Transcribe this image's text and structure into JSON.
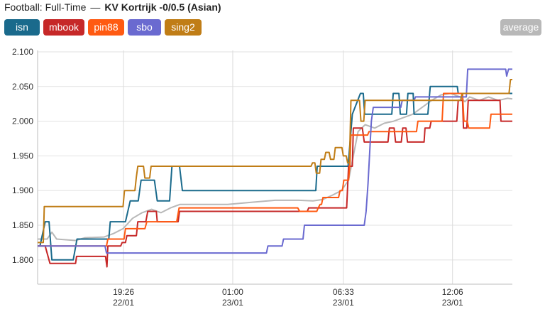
{
  "header": {
    "prefix": "Football: Full-Time",
    "separator": "—",
    "match": "KV Kortrijk -0/0.5 (Asian)"
  },
  "legend": {
    "buttons": [
      {
        "label": "isn",
        "color": "#1a6a8c"
      },
      {
        "label": "mbook",
        "color": "#c62828"
      },
      {
        "label": "pin88",
        "color": "#ff5a12"
      },
      {
        "label": "sbo",
        "color": "#6a6ad0"
      },
      {
        "label": "sing2",
        "color": "#c07d16"
      }
    ],
    "average": {
      "label": "average",
      "color": "#b8b8b8"
    }
  },
  "chart_data": {
    "type": "line",
    "title": "",
    "xlabel": "",
    "ylabel": "",
    "ylim": [
      1.765,
      2.102
    ],
    "xlim": [
      0,
      100
    ],
    "grid": true,
    "y_ticks": [
      "1.800",
      "1.850",
      "1.900",
      "1.950",
      "2.000",
      "2.050",
      "2.100"
    ],
    "y_tick_values": [
      1.8,
      1.85,
      1.9,
      1.95,
      2.0,
      2.05,
      2.1
    ],
    "x_ticks": [
      {
        "x": 18.1,
        "time": "19:26",
        "date": "22/01"
      },
      {
        "x": 41.1,
        "time": "01:00",
        "date": "23/01"
      },
      {
        "x": 64.4,
        "time": "06:33",
        "date": "23/01"
      },
      {
        "x": 87.4,
        "time": "12:06",
        "date": "23/01"
      }
    ],
    "series": [
      {
        "name": "isn",
        "color": "#1a6a8c",
        "points": [
          [
            0,
            1.82
          ],
          [
            0.5,
            1.82
          ],
          [
            0.8,
            1.83
          ],
          [
            1.6,
            1.855
          ],
          [
            2.4,
            1.855
          ],
          [
            3.0,
            1.8
          ],
          [
            7.5,
            1.8
          ],
          [
            8.3,
            1.83
          ],
          [
            15,
            1.83
          ],
          [
            15.3,
            1.855
          ],
          [
            18.5,
            1.855
          ],
          [
            19.5,
            1.885
          ],
          [
            21.2,
            1.885
          ],
          [
            21.8,
            1.915
          ],
          [
            24.6,
            1.915
          ],
          [
            25.2,
            1.885
          ],
          [
            27.8,
            1.885
          ],
          [
            28.3,
            1.935
          ],
          [
            29.9,
            1.935
          ],
          [
            30.5,
            1.9
          ],
          [
            58.6,
            1.9
          ],
          [
            58.9,
            1.935
          ],
          [
            65.4,
            1.935
          ],
          [
            66.3,
            2.01
          ],
          [
            68.0,
            2.04
          ],
          [
            68.6,
            2.04
          ],
          [
            68.9,
            2.01
          ],
          [
            74.6,
            2.01
          ],
          [
            74.9,
            2.04
          ],
          [
            76.1,
            2.04
          ],
          [
            76.4,
            2.01
          ],
          [
            77.7,
            2.01
          ],
          [
            78.0,
            2.04
          ],
          [
            79.1,
            2.04
          ],
          [
            79.3,
            2.01
          ],
          [
            82.2,
            2.01
          ],
          [
            82.7,
            2.05
          ],
          [
            88.4,
            2.05
          ],
          [
            88.6,
            2.04
          ],
          [
            100,
            2.04
          ]
        ]
      },
      {
        "name": "mbook",
        "color": "#c62828",
        "points": [
          [
            0,
            1.82
          ],
          [
            1.6,
            1.82
          ],
          [
            2.6,
            1.795
          ],
          [
            8,
            1.795
          ],
          [
            8.2,
            1.805
          ],
          [
            14.3,
            1.805
          ],
          [
            14.6,
            1.79
          ],
          [
            14.8,
            1.82
          ],
          [
            17.5,
            1.82
          ],
          [
            17.8,
            1.825
          ],
          [
            18.5,
            1.825
          ],
          [
            18.8,
            1.835
          ],
          [
            20.8,
            1.835
          ],
          [
            21.1,
            1.855
          ],
          [
            22.8,
            1.855
          ],
          [
            23.2,
            1.87
          ],
          [
            25,
            1.87
          ],
          [
            25.2,
            1.855
          ],
          [
            29.6,
            1.855
          ],
          [
            29.9,
            1.87
          ],
          [
            56.8,
            1.87
          ],
          [
            57.1,
            1.875
          ],
          [
            65.1,
            1.875
          ],
          [
            65.5,
            1.935
          ],
          [
            66.3,
            1.935
          ],
          [
            66.5,
            1.99
          ],
          [
            68.4,
            1.99
          ],
          [
            68.8,
            1.97
          ],
          [
            73.8,
            1.97
          ],
          [
            74.1,
            1.99
          ],
          [
            75.1,
            1.99
          ],
          [
            75.4,
            1.97
          ],
          [
            76.6,
            1.97
          ],
          [
            76.9,
            1.99
          ],
          [
            77.6,
            1.99
          ],
          [
            77.9,
            1.97
          ],
          [
            81.4,
            1.97
          ],
          [
            81.6,
            1.99
          ],
          [
            82.6,
            1.99
          ],
          [
            82.9,
            2.0
          ],
          [
            88.3,
            2.0
          ],
          [
            88.6,
            2.03
          ],
          [
            89.5,
            2.03
          ],
          [
            89.7,
            1.99
          ],
          [
            90.4,
            1.99
          ],
          [
            90.7,
            2.03
          ],
          [
            97.4,
            2.03
          ],
          [
            97.6,
            2.0
          ],
          [
            100,
            2.0
          ]
        ]
      },
      {
        "name": "pin88",
        "color": "#ff5a12",
        "points": [
          [
            0,
            1.82
          ],
          [
            14.5,
            1.82
          ],
          [
            14.8,
            1.83
          ],
          [
            18.2,
            1.83
          ],
          [
            18.5,
            1.845
          ],
          [
            22.6,
            1.845
          ],
          [
            23,
            1.855
          ],
          [
            29.3,
            1.855
          ],
          [
            29.8,
            1.875
          ],
          [
            54.8,
            1.875
          ],
          [
            55.2,
            1.87
          ],
          [
            58.8,
            1.87
          ],
          [
            59.1,
            1.875
          ],
          [
            59.5,
            1.88
          ],
          [
            59.8,
            1.88
          ],
          [
            60.1,
            1.89
          ],
          [
            63.4,
            1.89
          ],
          [
            63.7,
            1.9
          ],
          [
            64.2,
            1.9
          ],
          [
            64.5,
            1.915
          ],
          [
            65.5,
            1.915
          ],
          [
            65.8,
            1.94
          ],
          [
            66,
            1.98
          ],
          [
            69.5,
            1.98
          ],
          [
            69.8,
            1.985
          ],
          [
            79.8,
            1.985
          ],
          [
            80.1,
            2.0
          ],
          [
            85.2,
            2.0
          ],
          [
            85.5,
            2.04
          ],
          [
            89.5,
            2.04
          ],
          [
            89.8,
            2.0
          ],
          [
            90.5,
            2.0
          ],
          [
            90.8,
            1.99
          ],
          [
            95.2,
            1.99
          ],
          [
            95.5,
            2.01
          ],
          [
            97.3,
            2.01
          ],
          [
            97.6,
            2.01
          ],
          [
            100,
            2.01
          ]
        ]
      },
      {
        "name": "sbo",
        "color": "#6a6ad0",
        "points": [
          [
            0,
            1.82
          ],
          [
            14.2,
            1.82
          ],
          [
            14.5,
            1.81
          ],
          [
            48.2,
            1.81
          ],
          [
            48.5,
            1.82
          ],
          [
            51.5,
            1.82
          ],
          [
            51.8,
            1.83
          ],
          [
            53.3,
            1.83
          ],
          [
            53.6,
            1.83
          ],
          [
            55.9,
            1.83
          ],
          [
            56.2,
            1.85
          ],
          [
            68.8,
            1.85
          ],
          [
            69.2,
            1.87
          ],
          [
            69.6,
            1.91
          ],
          [
            70.3,
            2.0
          ],
          [
            70.7,
            2.02
          ],
          [
            76.5,
            2.02
          ],
          [
            76.8,
            2.03
          ],
          [
            79.3,
            2.03
          ],
          [
            79.6,
            2.035
          ],
          [
            90.3,
            2.035
          ],
          [
            90.6,
            2.075
          ],
          [
            98.6,
            2.075
          ],
          [
            98.8,
            2.065
          ],
          [
            99.2,
            2.075
          ],
          [
            100,
            2.075
          ]
        ]
      },
      {
        "name": "sing2",
        "color": "#c07d16",
        "points": [
          [
            0,
            1.825
          ],
          [
            1.2,
            1.825
          ],
          [
            1.4,
            1.877
          ],
          [
            18,
            1.877
          ],
          [
            18.3,
            1.9
          ],
          [
            20.5,
            1.9
          ],
          [
            20.8,
            1.92
          ],
          [
            21.1,
            1.935
          ],
          [
            22.3,
            1.935
          ],
          [
            22.6,
            1.918
          ],
          [
            23.6,
            1.918
          ],
          [
            23.9,
            1.935
          ],
          [
            57.6,
            1.935
          ],
          [
            57.9,
            1.94
          ],
          [
            58.4,
            1.94
          ],
          [
            58.7,
            1.925
          ],
          [
            59.4,
            1.925
          ],
          [
            59.7,
            1.945
          ],
          [
            60.4,
            1.945
          ],
          [
            60.7,
            1.955
          ],
          [
            61.4,
            1.955
          ],
          [
            61.7,
            1.945
          ],
          [
            62.4,
            1.945
          ],
          [
            62.7,
            1.962
          ],
          [
            64.1,
            1.962
          ],
          [
            64.4,
            1.95
          ],
          [
            65,
            1.95
          ],
          [
            65.3,
            1.94
          ],
          [
            65.7,
            1.94
          ],
          [
            66,
            2.03
          ],
          [
            67.8,
            2.03
          ],
          [
            68.1,
            2.0
          ],
          [
            68.7,
            2.0
          ],
          [
            69,
            2.03
          ],
          [
            73.3,
            2.03
          ],
          [
            73.6,
            2.03
          ],
          [
            76.4,
            2.03
          ],
          [
            76.7,
            2.03
          ],
          [
            89.1,
            2.03
          ],
          [
            89.4,
            2.04
          ],
          [
            99.3,
            2.04
          ],
          [
            99.6,
            2.06
          ],
          [
            100,
            2.06
          ]
        ]
      },
      {
        "name": "average",
        "color": "#b8b8b8",
        "points": [
          [
            0,
            1.83
          ],
          [
            2,
            1.83
          ],
          [
            3,
            1.84
          ],
          [
            4,
            1.83
          ],
          [
            8,
            1.828
          ],
          [
            10,
            1.832
          ],
          [
            14,
            1.833
          ],
          [
            16,
            1.838
          ],
          [
            18,
            1.845
          ],
          [
            20,
            1.86
          ],
          [
            22,
            1.868
          ],
          [
            24,
            1.873
          ],
          [
            26,
            1.868
          ],
          [
            28,
            1.875
          ],
          [
            30,
            1.88
          ],
          [
            40,
            1.88
          ],
          [
            45,
            1.883
          ],
          [
            50,
            1.886
          ],
          [
            55,
            1.886
          ],
          [
            58,
            1.885
          ],
          [
            60,
            1.887
          ],
          [
            62,
            1.893
          ],
          [
            64,
            1.9
          ],
          [
            65.5,
            1.915
          ],
          [
            66.5,
            1.95
          ],
          [
            67.5,
            1.985
          ],
          [
            69,
            1.995
          ],
          [
            71,
            1.99
          ],
          [
            73,
            1.997
          ],
          [
            75,
            2.0
          ],
          [
            77,
            2.005
          ],
          [
            79,
            2.01
          ],
          [
            81,
            2.02
          ],
          [
            83,
            2.03
          ],
          [
            85,
            2.038
          ],
          [
            87,
            2.04
          ],
          [
            89,
            2.035
          ],
          [
            90,
            2.028
          ],
          [
            91,
            2.035
          ],
          [
            93,
            2.03
          ],
          [
            95,
            2.035
          ],
          [
            97,
            2.03
          ],
          [
            99,
            2.033
          ],
          [
            100,
            2.032
          ]
        ]
      }
    ]
  }
}
